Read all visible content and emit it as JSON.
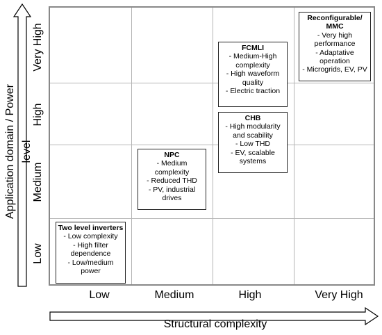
{
  "axes": {
    "y_label": "Application domain / Power level",
    "x_label": "Structural complexity",
    "y_levels": [
      "Low",
      "Medium",
      "High",
      "Very High"
    ],
    "x_levels": [
      "Low",
      "Medium",
      "High",
      "Very High"
    ]
  },
  "boxes": {
    "two_level": {
      "title": "Two level inverters",
      "lines": [
        "- Low complexity",
        "- High filter",
        "dependence",
        "- Low/medium",
        "power"
      ]
    },
    "npc": {
      "title": "NPC",
      "lines": [
        "- Medium",
        "complexity",
        "- Reduced THD",
        "- PV, industrial",
        "drives"
      ]
    },
    "chb": {
      "title": "CHB",
      "lines": [
        "- High modularity",
        "and scability",
        "- Low THD",
        "- EV, scalable",
        "systems"
      ]
    },
    "fcmli": {
      "title": "FCMLI",
      "lines": [
        "- Medium-High",
        "complexity",
        "- High waveform",
        "quality",
        "- Electric traction"
      ]
    },
    "mmc": {
      "title_lines": [
        "Reconfigurable/",
        "MMC"
      ],
      "lines": [
        "- Very high",
        "performance",
        "- Adaptative",
        "operation",
        "- Microgrids, EV, PV"
      ]
    }
  }
}
